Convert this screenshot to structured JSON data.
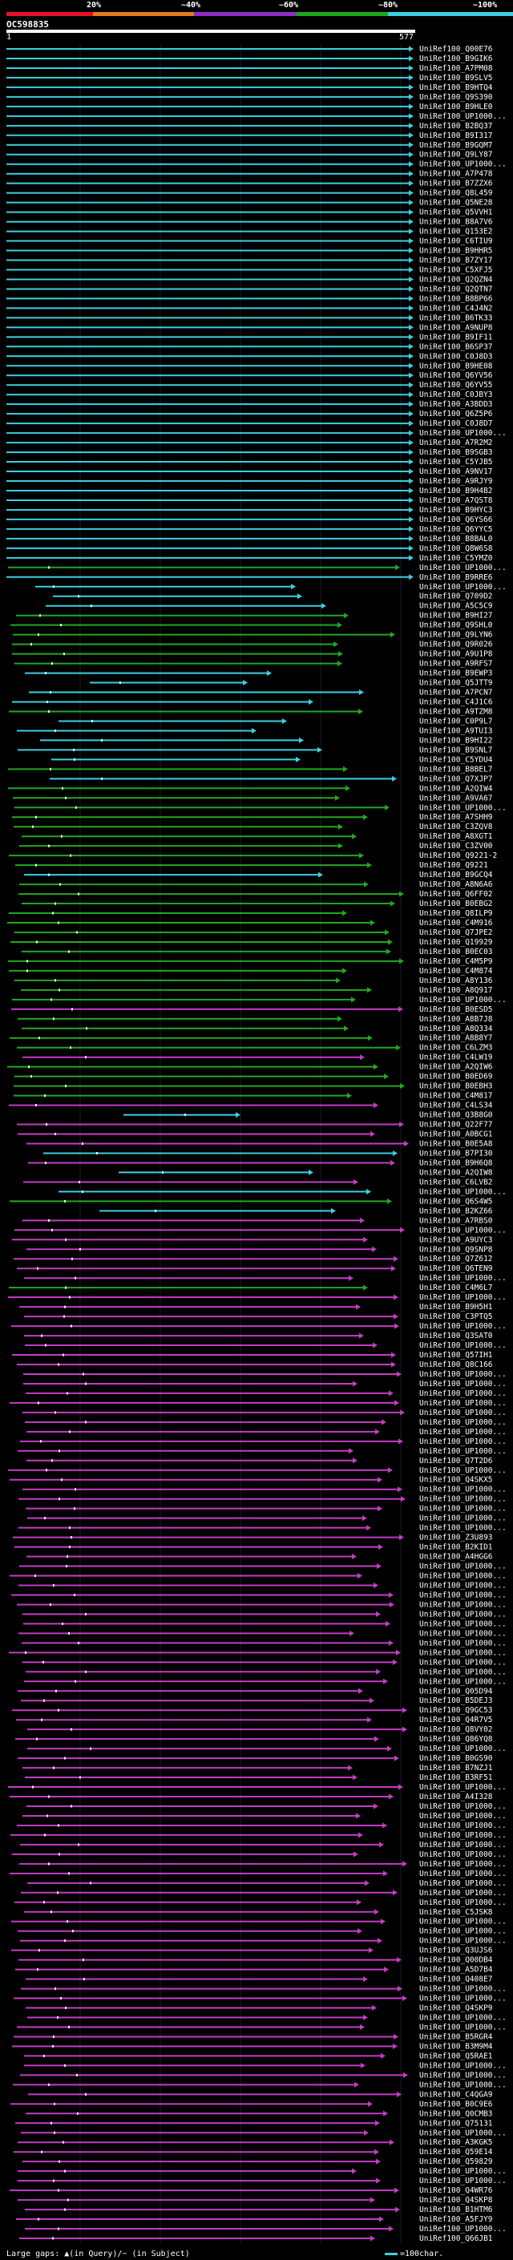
{
  "scale": {
    "labels": [
      "20%",
      "~40%",
      "~60%",
      "~80%",
      "~100%"
    ],
    "colors": [
      "#e8102a",
      "#e07d1c",
      "#8d2ec4",
      "#1ea91e",
      "#3ccfe0"
    ]
  },
  "query": {
    "id": "OC598835",
    "start": "1",
    "end": "577"
  },
  "legend": {
    "text": "Large gaps: ▲(in Query)/~ (in Subject)",
    "scale_label": "=100char."
  },
  "hit_colors": {
    "cyan": "#3ccfe0",
    "green": "#22a81e",
    "magenta": "#c43cc4"
  },
  "hits": [
    {
      "label": "UniRef100_Q00E76",
      "color": "cyan"
    },
    {
      "label": "UniRef100_B9GIK6",
      "color": "cyan"
    },
    {
      "label": "UniRef100_A7PM08",
      "color": "cyan"
    },
    {
      "label": "UniRef100_B9SLV5",
      "color": "cyan"
    },
    {
      "label": "UniRef100_B9HTQ4",
      "color": "cyan"
    },
    {
      "label": "UniRef100_Q9S390",
      "color": "cyan"
    },
    {
      "label": "UniRef100_B9HLE0",
      "color": "cyan"
    },
    {
      "label": "UniRef100_UP1000...",
      "color": "cyan"
    },
    {
      "label": "UniRef100_B2BQ37",
      "color": "cyan"
    },
    {
      "label": "UniRef100_B9I317",
      "color": "cyan"
    },
    {
      "label": "UniRef100_B9GQM7",
      "color": "cyan"
    },
    {
      "label": "UniRef100_Q9LY87",
      "color": "cyan"
    },
    {
      "label": "UniRef100_UP1000...",
      "color": "cyan"
    },
    {
      "label": "UniRef100_A7P478",
      "color": "cyan"
    },
    {
      "label": "UniRef100_B7ZZX6",
      "color": "cyan"
    },
    {
      "label": "UniRef100_Q8L459",
      "color": "cyan"
    },
    {
      "label": "UniRef100_Q5NE28",
      "color": "cyan"
    },
    {
      "label": "UniRef100_Q5VVH1",
      "color": "cyan"
    },
    {
      "label": "UniRef100_B8A7V6",
      "color": "cyan"
    },
    {
      "label": "UniRef100_Q153E2",
      "color": "cyan"
    },
    {
      "label": "UniRef100_C6TIU9",
      "color": "cyan"
    },
    {
      "label": "UniRef100_B9HHR5",
      "color": "cyan"
    },
    {
      "label": "UniRef100_B7ZY17",
      "color": "cyan"
    },
    {
      "label": "UniRef100_C5XFJ5",
      "color": "cyan"
    },
    {
      "label": "UniRef100_Q2QZN4",
      "color": "cyan"
    },
    {
      "label": "UniRef100_Q2QTN7",
      "color": "cyan"
    },
    {
      "label": "UniRef100_B8BP66",
      "color": "cyan"
    },
    {
      "label": "UniRef100_C4J4N2",
      "color": "cyan"
    },
    {
      "label": "UniRef100_B6TK33",
      "color": "cyan"
    },
    {
      "label": "UniRef100_A9NUP8",
      "color": "cyan"
    },
    {
      "label": "UniRef100_B9IF11",
      "color": "cyan"
    },
    {
      "label": "UniRef100_B6SP37",
      "color": "cyan"
    },
    {
      "label": "UniRef100_C0J8D3",
      "color": "cyan"
    },
    {
      "label": "UniRef100_B9HE08",
      "color": "cyan"
    },
    {
      "label": "UniRef100_Q6YV56",
      "color": "cyan"
    },
    {
      "label": "UniRef100_Q6YV55",
      "color": "cyan"
    },
    {
      "label": "UniRef100_C0JBY3",
      "color": "cyan"
    },
    {
      "label": "UniRef100_A3BDD3",
      "color": "cyan"
    },
    {
      "label": "UniRef100_Q6Z5P6",
      "color": "cyan"
    },
    {
      "label": "UniRef100_C0J8D7",
      "color": "cyan"
    },
    {
      "label": "UniRef100_UP1000...",
      "color": "cyan"
    },
    {
      "label": "UniRef100_A7R2M2",
      "color": "cyan"
    },
    {
      "label": "UniRef100_B9SGB3",
      "color": "cyan"
    },
    {
      "label": "UniRef100_C5YJB5",
      "color": "cyan"
    },
    {
      "label": "UniRef100_A9NV17",
      "color": "cyan"
    },
    {
      "label": "UniRef100_A9RJY9",
      "color": "cyan"
    },
    {
      "label": "UniRef100_B9H4B2",
      "color": "cyan"
    },
    {
      "label": "UniRef100_A7QST8",
      "color": "cyan"
    },
    {
      "label": "UniRef100_B9HYC3",
      "color": "cyan"
    },
    {
      "label": "UniRef100_Q6YS66",
      "color": "cyan"
    },
    {
      "label": "UniRef100_Q6YYC5",
      "color": "cyan"
    },
    {
      "label": "UniRef100_B8BAL0",
      "color": "cyan"
    },
    {
      "label": "UniRef100_Q8W6S8",
      "color": "cyan"
    },
    {
      "label": "UniRef100_C5YMZ0",
      "color": "cyan"
    },
    {
      "label": "UniRef100_UP1000...",
      "color": "green"
    },
    {
      "label": "UniRef100_B9RRE6",
      "color": "cyan"
    },
    {
      "label": "UniRef100_UP1000...",
      "color": "cyan"
    },
    {
      "label": "UniRef100_Q709D2",
      "color": "cyan"
    },
    {
      "label": "UniRef100_A5C5C9",
      "color": "cyan"
    },
    {
      "label": "UniRef100_B9HI27",
      "color": "green"
    },
    {
      "label": "UniRef100_Q9SHL0",
      "color": "green"
    },
    {
      "label": "UniRef100_Q9LYN6",
      "color": "green"
    },
    {
      "label": "UniRef100_Q9R026",
      "color": "green"
    },
    {
      "label": "UniRef100_A9U1P8",
      "color": "green"
    },
    {
      "label": "UniRef100_A9RFS7",
      "color": "green"
    },
    {
      "label": "UniRef100_B9EWP3",
      "color": "cyan"
    },
    {
      "label": "UniRef100_Q5JTT9",
      "color": "cyan"
    },
    {
      "label": "UniRef100_A7PCN7",
      "color": "cyan"
    },
    {
      "label": "UniRef100_C4J1C6",
      "color": "cyan"
    },
    {
      "label": "UniRef100_A9TZM8",
      "color": "green"
    },
    {
      "label": "UniRef100_C0P9L7",
      "color": "cyan"
    },
    {
      "label": "UniRef100_A9TUI3",
      "color": "cyan"
    },
    {
      "label": "UniRef100_B9HI22",
      "color": "cyan"
    },
    {
      "label": "UniRef100_B9SNL7",
      "color": "cyan"
    },
    {
      "label": "UniRef100_C5YDU4",
      "color": "cyan"
    },
    {
      "label": "UniRef100_B8BEL7",
      "color": "green"
    },
    {
      "label": "UniRef100_Q7XJP7",
      "color": "cyan"
    },
    {
      "label": "UniRef100_A2QIW4",
      "color": "green"
    },
    {
      "label": "UniRef100_A9VA67",
      "color": "green"
    },
    {
      "label": "UniRef100_UP1000...",
      "color": "green"
    },
    {
      "label": "UniRef100_A7SHH9",
      "color": "green"
    },
    {
      "label": "UniRef100_C3ZQV8",
      "color": "green"
    },
    {
      "label": "UniRef100_A8XGT1",
      "color": "green"
    },
    {
      "label": "UniRef100_C3ZV00",
      "color": "green"
    },
    {
      "label": "UniRef100_Q9221-2",
      "color": "green"
    },
    {
      "label": "UniRef100_Q9221",
      "color": "green"
    },
    {
      "label": "UniRef100_B9GCQ4",
      "color": "cyan"
    },
    {
      "label": "UniRef100_A8N6A6",
      "color": "green"
    },
    {
      "label": "UniRef100_Q6FF02",
      "color": "green"
    },
    {
      "label": "UniRef100_B0EBG2",
      "color": "green"
    },
    {
      "label": "UniRef100_Q8ILP9",
      "color": "green"
    },
    {
      "label": "UniRef100_C4M916",
      "color": "green"
    },
    {
      "label": "UniRef100_Q7JPE2",
      "color": "green"
    },
    {
      "label": "UniRef100_Q19929",
      "color": "green"
    },
    {
      "label": "UniRef100_B0EC03",
      "color": "green"
    },
    {
      "label": "UniRef100_C4M5P9",
      "color": "green"
    },
    {
      "label": "UniRef100_C4M874",
      "color": "green"
    },
    {
      "label": "UniRef100_A8Y136",
      "color": "green"
    },
    {
      "label": "UniRef100_A8Q917",
      "color": "green"
    },
    {
      "label": "UniRef100_UP1000...",
      "color": "green"
    },
    {
      "label": "UniRef100_B0ESD5",
      "color": "magenta"
    },
    {
      "label": "UniRef100_A8B7J8",
      "color": "green"
    },
    {
      "label": "UniRef100_A8Q334",
      "color": "green"
    },
    {
      "label": "UniRef100_A8B8Y7",
      "color": "green"
    },
    {
      "label": "UniRef100_C6LZM3",
      "color": "green"
    },
    {
      "label": "UniRef100_C4LW19",
      "color": "magenta"
    },
    {
      "label": "UniRef100_A2QIW6",
      "color": "green"
    },
    {
      "label": "UniRef100_B0ED69",
      "color": "green"
    },
    {
      "label": "UniRef100_B0EBH3",
      "color": "green"
    },
    {
      "label": "UniRef100_C4M817",
      "color": "green"
    },
    {
      "label": "UniRef100_C4LS34",
      "color": "magenta"
    },
    {
      "label": "UniRef100_Q3B8G0",
      "color": "cyan"
    },
    {
      "label": "UniRef100_Q22F77",
      "color": "magenta"
    },
    {
      "label": "UniRef100_A0BCG1",
      "color": "magenta"
    },
    {
      "label": "UniRef100_B0E5A8",
      "color": "magenta"
    },
    {
      "label": "UniRef100_B7PI30",
      "color": "cyan"
    },
    {
      "label": "UniRef100_B9H6Q8",
      "color": "magenta"
    },
    {
      "label": "UniRef100_A2QIW8",
      "color": "cyan"
    },
    {
      "label": "UniRef100_C6LVB2",
      "color": "magenta"
    },
    {
      "label": "UniRef100_UP1000...",
      "color": "cyan"
    },
    {
      "label": "UniRef100_Q6S4W5",
      "color": "green"
    },
    {
      "label": "UniRef100_B2KZ66",
      "color": "cyan"
    },
    {
      "label": "UniRef100_A7RBS0",
      "color": "magenta"
    },
    {
      "label": "UniRef100_UP1000...",
      "color": "magenta"
    },
    {
      "label": "UniRef100_A9UYC3",
      "color": "magenta"
    },
    {
      "label": "UniRef100_Q9SNP8",
      "color": "magenta"
    },
    {
      "label": "UniRef100_Q7Z612",
      "color": "magenta"
    },
    {
      "label": "UniRef100_Q6TEN9",
      "color": "magenta"
    },
    {
      "label": "UniRef100_UP1000...",
      "color": "magenta"
    },
    {
      "label": "UniRef100_C4M6L7",
      "color": "green"
    },
    {
      "label": "UniRef100_UP1000...",
      "color": "magenta"
    },
    {
      "label": "UniRef100_B9H5H1",
      "color": "magenta"
    },
    {
      "label": "UniRef100_C3PTQ5",
      "color": "magenta"
    },
    {
      "label": "UniRef100_UP1000...",
      "color": "magenta"
    },
    {
      "label": "UniRef100_Q3SAT0",
      "color": "magenta"
    },
    {
      "label": "UniRef100_UP1000...",
      "color": "magenta"
    },
    {
      "label": "UniRef100_Q57IH1",
      "color": "magenta"
    },
    {
      "label": "UniRef100_Q8C166",
      "color": "magenta"
    },
    {
      "label": "UniRef100_UP1000...",
      "color": "magenta"
    },
    {
      "label": "UniRef100_UP1000...",
      "color": "magenta"
    },
    {
      "label": "UniRef100_UP1000...",
      "color": "magenta"
    },
    {
      "label": "UniRef100_UP1000...",
      "color": "magenta"
    },
    {
      "label": "UniRef100_UP1000...",
      "color": "magenta"
    },
    {
      "label": "UniRef100_UP1000...",
      "color": "magenta"
    },
    {
      "label": "UniRef100_UP1000...",
      "color": "magenta"
    },
    {
      "label": "UniRef100_UP1000...",
      "color": "magenta"
    },
    {
      "label": "UniRef100_UP1000...",
      "color": "magenta"
    },
    {
      "label": "UniRef100_Q7T2D6",
      "color": "magenta"
    },
    {
      "label": "UniRef100_UP1000...",
      "color": "magenta"
    },
    {
      "label": "UniRef100_Q4SKX5",
      "color": "magenta"
    },
    {
      "label": "UniRef100_UP1000...",
      "color": "magenta"
    },
    {
      "label": "UniRef100_UP1000...",
      "color": "magenta"
    },
    {
      "label": "UniRef100_UP1000...",
      "color": "magenta"
    },
    {
      "label": "UniRef100_UP1000...",
      "color": "magenta"
    },
    {
      "label": "UniRef100_UP1000...",
      "color": "magenta"
    },
    {
      "label": "UniRef100_Z3U893",
      "color": "magenta"
    },
    {
      "label": "UniRef100_B2KID1",
      "color": "magenta"
    },
    {
      "label": "UniRef100_A4HGG6",
      "color": "magenta"
    },
    {
      "label": "UniRef100_UP1000...",
      "color": "magenta"
    },
    {
      "label": "UniRef100_UP1000...",
      "color": "magenta"
    },
    {
      "label": "UniRef100_UP1000...",
      "color": "magenta"
    },
    {
      "label": "UniRef100_UP1000...",
      "color": "magenta"
    },
    {
      "label": "UniRef100_UP1000...",
      "color": "magenta"
    },
    {
      "label": "UniRef100_UP1000...",
      "color": "magenta"
    },
    {
      "label": "UniRef100_UP1000...",
      "color": "magenta"
    },
    {
      "label": "UniRef100_UP1000...",
      "color": "magenta"
    },
    {
      "label": "UniRef100_UP1000...",
      "color": "magenta"
    },
    {
      "label": "UniRef100_UP1000...",
      "color": "magenta"
    },
    {
      "label": "UniRef100_UP1000...",
      "color": "magenta"
    },
    {
      "label": "UniRef100_UP1000...",
      "color": "magenta"
    },
    {
      "label": "UniRef100_UP1000...",
      "color": "magenta"
    },
    {
      "label": "UniRef100_Q05D94",
      "color": "magenta"
    },
    {
      "label": "UniRef100_B5DEJ3",
      "color": "magenta"
    },
    {
      "label": "UniRef100_Q9GC53",
      "color": "magenta"
    },
    {
      "label": "UniRef100_Q4R7V5",
      "color": "magenta"
    },
    {
      "label": "UniRef100_Q8VY02",
      "color": "magenta"
    },
    {
      "label": "UniRef100_Q86YQ8",
      "color": "magenta"
    },
    {
      "label": "UniRef100_UP1000...",
      "color": "magenta"
    },
    {
      "label": "UniRef100_B0GS90",
      "color": "magenta"
    },
    {
      "label": "UniRef100_B7NZJ1",
      "color": "magenta"
    },
    {
      "label": "UniRef100_B3RF51",
      "color": "magenta"
    },
    {
      "label": "UniRef100_UP1000...",
      "color": "magenta"
    },
    {
      "label": "UniRef100_A4I328",
      "color": "magenta"
    },
    {
      "label": "UniRef100_UP1000...",
      "color": "magenta"
    },
    {
      "label": "UniRef100_UP1000...",
      "color": "magenta"
    },
    {
      "label": "UniRef100_UP1000...",
      "color": "magenta"
    },
    {
      "label": "UniRef100_UP1000...",
      "color": "magenta"
    },
    {
      "label": "UniRef100_UP1000...",
      "color": "magenta"
    },
    {
      "label": "UniRef100_UP1000...",
      "color": "magenta"
    },
    {
      "label": "UniRef100_UP1000...",
      "color": "magenta"
    },
    {
      "label": "UniRef100_UP1000...",
      "color": "magenta"
    },
    {
      "label": "UniRef100_UP1000...",
      "color": "magenta"
    },
    {
      "label": "UniRef100_UP1000...",
      "color": "magenta"
    },
    {
      "label": "UniRef100_UP1000...",
      "color": "magenta"
    },
    {
      "label": "UniRef100_C5JSK8",
      "color": "magenta"
    },
    {
      "label": "UniRef100_UP1000...",
      "color": "magenta"
    },
    {
      "label": "UniRef100_UP1000...",
      "color": "magenta"
    },
    {
      "label": "UniRef100_UP1000...",
      "color": "magenta"
    },
    {
      "label": "UniRef100_Q3UJS6",
      "color": "magenta"
    },
    {
      "label": "UniRef100_Q00DB4",
      "color": "magenta"
    },
    {
      "label": "UniRef100_A5D7B4",
      "color": "magenta"
    },
    {
      "label": "UniRef100_Q408E7",
      "color": "magenta"
    },
    {
      "label": "UniRef100_UP1000...",
      "color": "magenta"
    },
    {
      "label": "UniRef100_UP1000...",
      "color": "magenta"
    },
    {
      "label": "UniRef100_Q4SKP9",
      "color": "magenta"
    },
    {
      "label": "UniRef100_UP1000...",
      "color": "magenta"
    },
    {
      "label": "UniRef100_UP1000...",
      "color": "magenta"
    },
    {
      "label": "UniRef100_B5RGR4",
      "color": "magenta"
    },
    {
      "label": "UniRef100_B3M9M4",
      "color": "magenta"
    },
    {
      "label": "UniRef100_Q5RAE1",
      "color": "magenta"
    },
    {
      "label": "UniRef100_UP1000...",
      "color": "magenta"
    },
    {
      "label": "UniRef100_UP1000...",
      "color": "magenta"
    },
    {
      "label": "UniRef100_UP1000...",
      "color": "magenta"
    },
    {
      "label": "UniRef100_C4QGA9",
      "color": "magenta"
    },
    {
      "label": "UniRef100_B0C9E6",
      "color": "magenta"
    },
    {
      "label": "UniRef100_Q0CMB3",
      "color": "magenta"
    },
    {
      "label": "UniRef100_Q75131",
      "color": "magenta"
    },
    {
      "label": "UniRef100_UP1000...",
      "color": "magenta"
    },
    {
      "label": "UniRef100_A3KGK5",
      "color": "magenta"
    },
    {
      "label": "UniRef100_Q59E14",
      "color": "magenta"
    },
    {
      "label": "UniRef100_Q59829",
      "color": "magenta"
    },
    {
      "label": "UniRef100_UP1000...",
      "color": "magenta"
    },
    {
      "label": "UniRef100_UP1000...",
      "color": "magenta"
    },
    {
      "label": "UniRef100_Q4WR76",
      "color": "magenta"
    },
    {
      "label": "UniRef100_Q4SKP8",
      "color": "magenta"
    },
    {
      "label": "UniRef100_B1HTM6",
      "color": "magenta"
    },
    {
      "label": "UniRef100_A5FJY9",
      "color": "magenta"
    },
    {
      "label": "UniRef100_UP1000...",
      "color": "magenta"
    },
    {
      "label": "UniRef100_Q66JB1",
      "color": "magenta"
    }
  ]
}
